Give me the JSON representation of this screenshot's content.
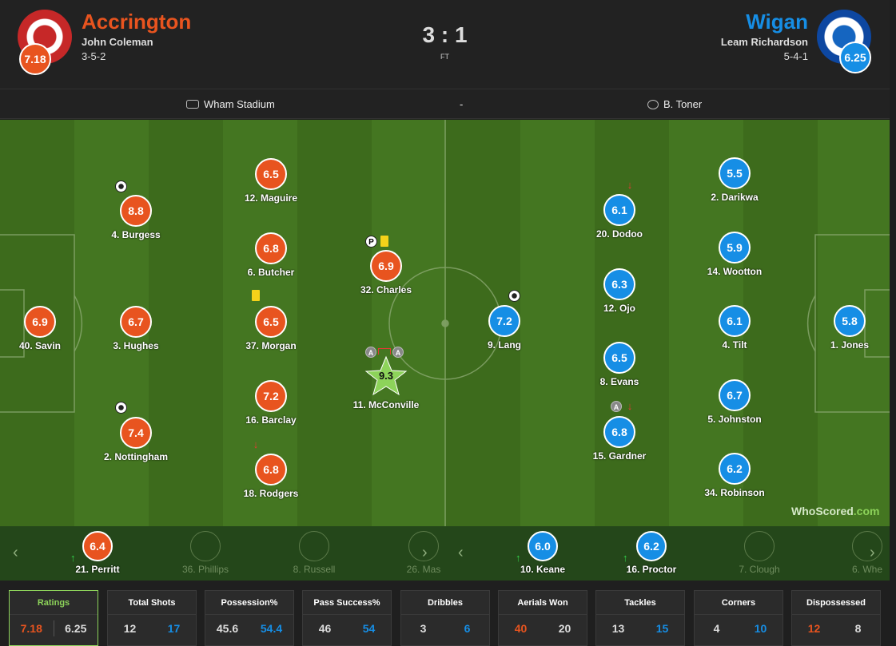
{
  "home": {
    "name": "Accrington",
    "manager": "John Coleman",
    "formation": "3-5-2",
    "rating": "7.18",
    "color": "#e8541f"
  },
  "away": {
    "name": "Wigan",
    "manager": "Leam Richardson",
    "formation": "5-4-1",
    "rating": "6.25",
    "color": "#168ee5"
  },
  "score": "3 : 1",
  "status": "FT",
  "venue": "Wham Stadium",
  "separator": "-",
  "referee": "B. Toner",
  "brand": {
    "part1": "WhoScored",
    "part2": ".com"
  },
  "icons": {
    "ball": "ball-icon",
    "yellow_card": "yellow-card-icon",
    "sub_out": "sub-out-icon",
    "sub_in": "sub-in-icon",
    "assist": "assist-icon",
    "penalty": "penalty-icon",
    "man_of_match": "star-icon"
  },
  "home_players": [
    {
      "label": "40. Savin",
      "rating": "6.9"
    },
    {
      "label": "4. Burgess",
      "rating": "8.8"
    },
    {
      "label": "3. Hughes",
      "rating": "6.7"
    },
    {
      "label": "2. Nottingham",
      "rating": "7.4"
    },
    {
      "label": "12. Maguire",
      "rating": "6.5"
    },
    {
      "label": "6. Butcher",
      "rating": "6.8"
    },
    {
      "label": "37. Morgan",
      "rating": "6.5"
    },
    {
      "label": "16. Barclay",
      "rating": "7.2"
    },
    {
      "label": "18. Rodgers",
      "rating": "6.8"
    },
    {
      "label": "32. Charles",
      "rating": "6.9"
    },
    {
      "label": "11. McConville",
      "rating": "9.3"
    }
  ],
  "away_players": [
    {
      "label": "9. Lang",
      "rating": "7.2"
    },
    {
      "label": "20. Dodoo",
      "rating": "6.1"
    },
    {
      "label": "12. Ojo",
      "rating": "6.3"
    },
    {
      "label": "8. Evans",
      "rating": "6.5"
    },
    {
      "label": "15. Gardner",
      "rating": "6.8"
    },
    {
      "label": "2. Darikwa",
      "rating": "5.5"
    },
    {
      "label": "14. Wootton",
      "rating": "5.9"
    },
    {
      "label": "4. Tilt",
      "rating": "6.1"
    },
    {
      "label": "5. Johnston",
      "rating": "6.7"
    },
    {
      "label": "34. Robinson",
      "rating": "6.2"
    },
    {
      "label": "1. Jones",
      "rating": "5.8"
    }
  ],
  "bench": {
    "home": [
      {
        "label": "21. Perritt",
        "rating": "6.4"
      },
      {
        "label": "36. Phillips",
        "rating": ""
      },
      {
        "label": "8. Russell",
        "rating": ""
      },
      {
        "label": "26. Mas",
        "rating": ""
      }
    ],
    "away": [
      {
        "label": "10. Keane",
        "rating": "6.0"
      },
      {
        "label": "16. Proctor",
        "rating": "6.2"
      },
      {
        "label": "7. Clough",
        "rating": ""
      },
      {
        "label": "6. Whe",
        "rating": ""
      }
    ],
    "prev": "‹",
    "next": "›"
  },
  "stats": [
    {
      "title": "Ratings",
      "home": "7.18",
      "away": "6.25"
    },
    {
      "title": "Total Shots",
      "home": "12",
      "away": "17"
    },
    {
      "title": "Possession%",
      "home": "45.6",
      "away": "54.4"
    },
    {
      "title": "Pass Success%",
      "home": "46",
      "away": "54"
    },
    {
      "title": "Dribbles",
      "home": "3",
      "away": "6"
    },
    {
      "title": "Aerials Won",
      "home": "40",
      "away": "20"
    },
    {
      "title": "Tackles",
      "home": "13",
      "away": "15"
    },
    {
      "title": "Corners",
      "home": "4",
      "away": "10"
    },
    {
      "title": "Dispossessed",
      "home": "12",
      "away": "8"
    }
  ],
  "event_labels": {
    "assist": "A",
    "penalty": "P",
    "sub_out": "↓",
    "sub_in": "↑"
  }
}
